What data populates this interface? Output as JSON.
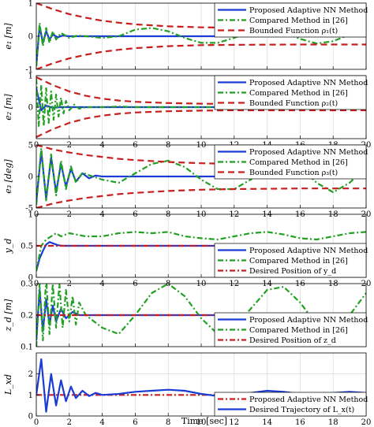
{
  "figure": {
    "xlabel": "Time [sec]"
  },
  "chart_data": [
    {
      "type": "line",
      "ylabel": "e₁ [m]",
      "xlim": [
        0,
        20
      ],
      "ylim": [
        -1,
        1
      ],
      "xticks": [
        "0",
        "2",
        "4",
        "6",
        "8",
        "10",
        "12",
        "14",
        "16",
        "18",
        "20"
      ],
      "xtick_values": [
        0,
        2,
        4,
        6,
        8,
        10,
        12,
        14,
        16,
        18,
        20
      ],
      "show_xticklabels": false,
      "yticks": [
        "-1",
        "0",
        "1"
      ],
      "ytick_values": [
        -1,
        0,
        1
      ],
      "grid": true,
      "legend": "top-right",
      "series": [
        {
          "name": "Proposed Adaptive NN Method",
          "style": "solid",
          "color": "#1a3bd6",
          "x": [
            0,
            0.2,
            0.4,
            0.6,
            0.8,
            1.0,
            1.3,
            1.6,
            2.0,
            2.5,
            3,
            4,
            5,
            6,
            8,
            10,
            12,
            14,
            16,
            18,
            20
          ],
          "y": [
            -0.9,
            0.3,
            -0.2,
            0.15,
            -0.1,
            0.05,
            -0.03,
            0.02,
            0.0,
            0.0,
            0.0,
            0.0,
            0.0,
            0.0,
            0.0,
            0.0,
            0.0,
            0.0,
            0.0,
            0.0,
            0.0
          ]
        },
        {
          "name": "Compared Method in [26]",
          "style": "dashdot",
          "color": "#22a022",
          "x": [
            0,
            0.2,
            0.4,
            0.6,
            0.8,
            1.0,
            1.2,
            1.5,
            2.0,
            2.5,
            3,
            4,
            5,
            6,
            7,
            8,
            9,
            10,
            11,
            12,
            13,
            14,
            15,
            16,
            17,
            18,
            19,
            20
          ],
          "y": [
            -0.9,
            0.4,
            -0.3,
            0.25,
            -0.2,
            0.15,
            -0.1,
            0.1,
            -0.05,
            0.02,
            0.0,
            -0.05,
            0.0,
            0.2,
            0.25,
            0.15,
            -0.05,
            -0.2,
            -0.2,
            -0.05,
            0.15,
            0.22,
            0.12,
            -0.08,
            -0.22,
            -0.15,
            0.05,
            0.18
          ]
        },
        {
          "name": "Bounded Function ρ₁(t)",
          "style": "dashed",
          "color": "#c81e1e",
          "x": [
            0,
            1,
            2,
            3,
            4,
            5,
            6,
            8,
            10,
            12,
            14,
            16,
            18,
            20
          ],
          "y": [
            1.0,
            0.82,
            0.67,
            0.56,
            0.47,
            0.41,
            0.36,
            0.3,
            0.27,
            0.26,
            0.255,
            0.25,
            0.25,
            0.25
          ],
          "mirror": true
        }
      ]
    },
    {
      "type": "line",
      "ylabel": "e₂ [m]",
      "xlim": [
        0,
        20
      ],
      "ylim": [
        -1,
        1
      ],
      "xticks": [
        "0",
        "2",
        "4",
        "6",
        "8",
        "10",
        "12",
        "14",
        "16",
        "18",
        "20"
      ],
      "xtick_values": [
        0,
        2,
        4,
        6,
        8,
        10,
        12,
        14,
        16,
        18,
        20
      ],
      "show_xticklabels": true,
      "yticks": [
        "0",
        "1"
      ],
      "ytick_values": [
        0,
        1
      ],
      "grid": true,
      "legend": "top-right",
      "series": [
        {
          "name": "Proposed Adaptive NN Method",
          "style": "solid",
          "color": "#1a3bd6",
          "x": [
            0,
            0.3,
            0.6,
            1.0,
            1.5,
            2,
            3,
            4,
            6,
            8,
            10,
            12,
            14,
            16,
            18,
            20
          ],
          "y": [
            0.6,
            -0.1,
            0.05,
            -0.02,
            0.0,
            0.0,
            0.0,
            0.0,
            0.0,
            0.0,
            0.0,
            0.0,
            0.0,
            0.0,
            0.0,
            0.0
          ]
        },
        {
          "name": "Compared Method in [26]",
          "style": "dashdot",
          "color": "#22a022",
          "x": [
            0,
            0.15,
            0.3,
            0.45,
            0.6,
            0.75,
            0.9,
            1.05,
            1.2,
            1.35,
            1.5,
            1.65,
            1.8,
            2.0,
            2.3,
            2.6,
            3,
            4,
            5,
            6,
            8,
            10,
            12,
            14,
            16,
            18,
            20
          ],
          "y": [
            0.9,
            -0.6,
            0.7,
            -0.6,
            0.6,
            -0.5,
            0.5,
            -0.4,
            0.4,
            -0.3,
            0.3,
            -0.2,
            0.2,
            -0.1,
            0.08,
            -0.05,
            0.0,
            0.0,
            0.02,
            0.0,
            0.0,
            0.0,
            0.0,
            0.0,
            0.0,
            0.0,
            0.0
          ]
        },
        {
          "name": "Bounded Function ρ₂(t)",
          "style": "dashed",
          "color": "#c81e1e",
          "x": [
            0,
            1,
            2,
            3,
            4,
            5,
            6,
            8,
            10,
            12,
            14,
            16,
            18,
            20
          ],
          "y": [
            0.95,
            0.7,
            0.5,
            0.36,
            0.27,
            0.21,
            0.17,
            0.13,
            0.11,
            0.1,
            0.1,
            0.1,
            0.1,
            0.1
          ],
          "mirror": true
        }
      ]
    },
    {
      "type": "line",
      "ylabel": "e₃ [deg]",
      "xlim": [
        0,
        20
      ],
      "ylim": [
        -5,
        5
      ],
      "xticks": [
        "0",
        "2",
        "4",
        "6",
        "8",
        "10",
        "12",
        "14",
        "16",
        "18",
        "20"
      ],
      "xtick_values": [
        0,
        2,
        4,
        6,
        8,
        10,
        12,
        14,
        16,
        18,
        20
      ],
      "show_xticklabels": true,
      "yticks": [
        "-5",
        "0",
        "5"
      ],
      "ytick_values": [
        -5,
        0,
        5
      ],
      "grid": true,
      "legend": "top-right",
      "series": [
        {
          "name": "Proposed Adaptive NN Method",
          "style": "solid",
          "color": "#1a3bd6",
          "x": [
            0,
            0.3,
            0.6,
            0.9,
            1.2,
            1.5,
            1.8,
            2.1,
            2.4,
            2.8,
            3.2,
            3.6,
            4,
            5,
            6,
            8,
            10,
            12,
            14,
            16,
            18,
            20
          ],
          "y": [
            -4.0,
            4.0,
            -3.5,
            3.0,
            -2.5,
            2.0,
            -1.6,
            1.2,
            -0.8,
            0.5,
            -0.3,
            0.15,
            0.0,
            0.0,
            0.0,
            0.0,
            0.0,
            0.0,
            0.0,
            0.0,
            0.0,
            0.0
          ]
        },
        {
          "name": "Compared Method in [26]",
          "style": "dashdot",
          "color": "#22a022",
          "x": [
            0,
            0.3,
            0.6,
            0.9,
            1.2,
            1.5,
            1.8,
            2.1,
            2.4,
            2.8,
            3.2,
            4,
            5,
            6,
            7,
            8,
            9,
            10,
            11,
            12,
            13,
            14,
            15,
            16,
            17,
            18,
            19,
            20
          ],
          "y": [
            -4.5,
            4.5,
            -3.8,
            3.5,
            -3.0,
            2.5,
            -2.0,
            1.6,
            -1.0,
            0.6,
            0.2,
            -0.5,
            -1.0,
            0.5,
            2.0,
            2.5,
            1.5,
            -0.5,
            -2.0,
            -2.0,
            -0.5,
            1.5,
            2.5,
            1.5,
            -1.0,
            -2.5,
            -1.0,
            1.5
          ]
        },
        {
          "name": "Bounded Function ρ₃(t)",
          "style": "dashed",
          "color": "#c81e1e",
          "x": [
            0,
            1,
            2,
            3,
            4,
            5,
            6,
            8,
            10,
            12,
            14,
            16,
            18,
            20
          ],
          "y": [
            5.0,
            4.3,
            3.8,
            3.4,
            3.1,
            2.8,
            2.6,
            2.3,
            2.1,
            2.0,
            1.95,
            1.9,
            1.9,
            1.9
          ],
          "mirror": true
        }
      ]
    },
    {
      "type": "line",
      "ylabel": "y_d",
      "xlim": [
        0,
        20
      ],
      "ylim": [
        0,
        1
      ],
      "xticks": [
        "0",
        "2",
        "4",
        "6",
        "8",
        "10",
        "12",
        "14",
        "16",
        "18",
        "20"
      ],
      "xtick_values": [
        0,
        2,
        4,
        6,
        8,
        10,
        12,
        14,
        16,
        18,
        20
      ],
      "show_xticklabels": true,
      "yticks": [
        "0",
        "0.5",
        "1"
      ],
      "ytick_values": [
        0,
        0.5,
        1
      ],
      "grid": true,
      "legend": "bottom-right",
      "series": [
        {
          "name": "Proposed Adaptive NN Method",
          "style": "solid",
          "color": "#1a3bd6",
          "x": [
            0,
            0.2,
            0.4,
            0.6,
            0.8,
            1.0,
            1.3,
            1.6,
            2.0,
            3,
            4,
            6,
            8,
            10,
            12,
            14,
            16,
            18,
            20
          ],
          "y": [
            0.1,
            0.3,
            0.42,
            0.52,
            0.56,
            0.54,
            0.51,
            0.5,
            0.5,
            0.5,
            0.5,
            0.5,
            0.5,
            0.5,
            0.5,
            0.5,
            0.5,
            0.5,
            0.5
          ]
        },
        {
          "name": "Compared Method in [26]",
          "style": "dashdot",
          "color": "#22a022",
          "x": [
            0,
            0.3,
            0.6,
            0.9,
            1.2,
            1.5,
            2,
            3,
            4,
            5,
            6,
            7,
            8,
            9,
            10,
            11,
            12,
            13,
            14,
            15,
            16,
            17,
            18,
            19,
            20
          ],
          "y": [
            0.1,
            0.5,
            0.6,
            0.65,
            0.7,
            0.65,
            0.7,
            0.65,
            0.65,
            0.7,
            0.72,
            0.7,
            0.72,
            0.65,
            0.62,
            0.6,
            0.65,
            0.7,
            0.72,
            0.68,
            0.62,
            0.6,
            0.65,
            0.7,
            0.72
          ]
        },
        {
          "name": "Desired Position of y_d",
          "style": "dashdot",
          "color": "#c81e1e",
          "x": [
            0,
            20
          ],
          "y": [
            0.5,
            0.5
          ]
        }
      ]
    },
    {
      "type": "line",
      "ylabel": "z_d [m]",
      "xlim": [
        0,
        20
      ],
      "ylim": [
        0.1,
        0.3
      ],
      "xticks": [
        "0",
        "2",
        "4",
        "6",
        "8",
        "10",
        "12",
        "14",
        "16",
        "18",
        "20"
      ],
      "xtick_values": [
        0,
        2,
        4,
        6,
        8,
        10,
        12,
        14,
        16,
        18,
        20
      ],
      "show_xticklabels": false,
      "yticks": [
        "0.1",
        "0.2",
        "0.3"
      ],
      "ytick_values": [
        0.1,
        0.2,
        0.3
      ],
      "grid": true,
      "legend": "bottom-right",
      "series": [
        {
          "name": "Proposed Adaptive NN Method",
          "style": "solid",
          "color": "#1a3bd6",
          "x": [
            0,
            0.2,
            0.4,
            0.6,
            0.8,
            1.0,
            1.2,
            1.5,
            1.8,
            2.2,
            2.6,
            3,
            4,
            6,
            8,
            10,
            12,
            14,
            16,
            18,
            20
          ],
          "y": [
            0.12,
            0.28,
            0.15,
            0.25,
            0.17,
            0.23,
            0.18,
            0.22,
            0.19,
            0.21,
            0.2,
            0.2,
            0.2,
            0.2,
            0.2,
            0.2,
            0.2,
            0.2,
            0.2,
            0.2,
            0.2
          ]
        },
        {
          "name": "Compared Method in [26]",
          "style": "dashdot",
          "color": "#22a022",
          "x": [
            0,
            0.2,
            0.4,
            0.6,
            0.8,
            1.0,
            1.2,
            1.4,
            1.6,
            1.8,
            2.0,
            2.2,
            2.4,
            2.6,
            3,
            4,
            5,
            6,
            7,
            8,
            9,
            10,
            11,
            12,
            13,
            14,
            15,
            16,
            17,
            18,
            19,
            20
          ],
          "y": [
            0.1,
            0.3,
            0.12,
            0.32,
            0.14,
            0.3,
            0.16,
            0.3,
            0.16,
            0.28,
            0.18,
            0.26,
            0.17,
            0.24,
            0.2,
            0.16,
            0.14,
            0.2,
            0.27,
            0.3,
            0.26,
            0.19,
            0.14,
            0.16,
            0.22,
            0.28,
            0.29,
            0.24,
            0.17,
            0.14,
            0.2,
            0.27
          ]
        },
        {
          "name": "Desired Position of z_d",
          "style": "dashdot",
          "color": "#c81e1e",
          "x": [
            0,
            20
          ],
          "y": [
            0.2,
            0.2
          ]
        }
      ]
    },
    {
      "type": "line",
      "ylabel": "L_xd",
      "xlim": [
        0,
        20
      ],
      "ylim": [
        0,
        3
      ],
      "xticks": [
        "0",
        "2",
        "4",
        "6",
        "8",
        "10",
        "12",
        "14",
        "16",
        "18",
        "20"
      ],
      "xtick_values": [
        0,
        2,
        4,
        6,
        8,
        10,
        12,
        14,
        16,
        18,
        20
      ],
      "show_xticklabels": true,
      "yticks": [
        "0",
        "1",
        "2"
      ],
      "ytick_values": [
        0,
        1,
        2
      ],
      "grid": true,
      "legend": "bottom-right",
      "series": [
        {
          "name": "Proposed Adaptive NN Method",
          "style": "dashdot",
          "color": "#c81e1e",
          "x": [
            0,
            20
          ],
          "y": [
            1.0,
            1.0
          ]
        },
        {
          "name": "Desired Trajectory of L_x(t)",
          "style": "solid",
          "color": "#1a3bd6",
          "x": [
            0,
            0.3,
            0.6,
            0.9,
            1.2,
            1.5,
            1.8,
            2.1,
            2.4,
            2.8,
            3.2,
            3.6,
            4,
            5,
            6,
            7,
            8,
            9,
            10,
            11,
            12,
            13,
            14,
            15,
            16,
            17,
            18,
            19,
            20
          ],
          "y": [
            1.0,
            2.7,
            0.2,
            2.0,
            0.5,
            1.7,
            0.7,
            1.4,
            0.85,
            1.2,
            0.95,
            1.1,
            1.0,
            1.05,
            1.15,
            1.2,
            1.25,
            1.2,
            1.05,
            0.95,
            1.0,
            1.1,
            1.2,
            1.15,
            1.05,
            1.0,
            1.1,
            1.15,
            1.1
          ]
        }
      ]
    }
  ]
}
